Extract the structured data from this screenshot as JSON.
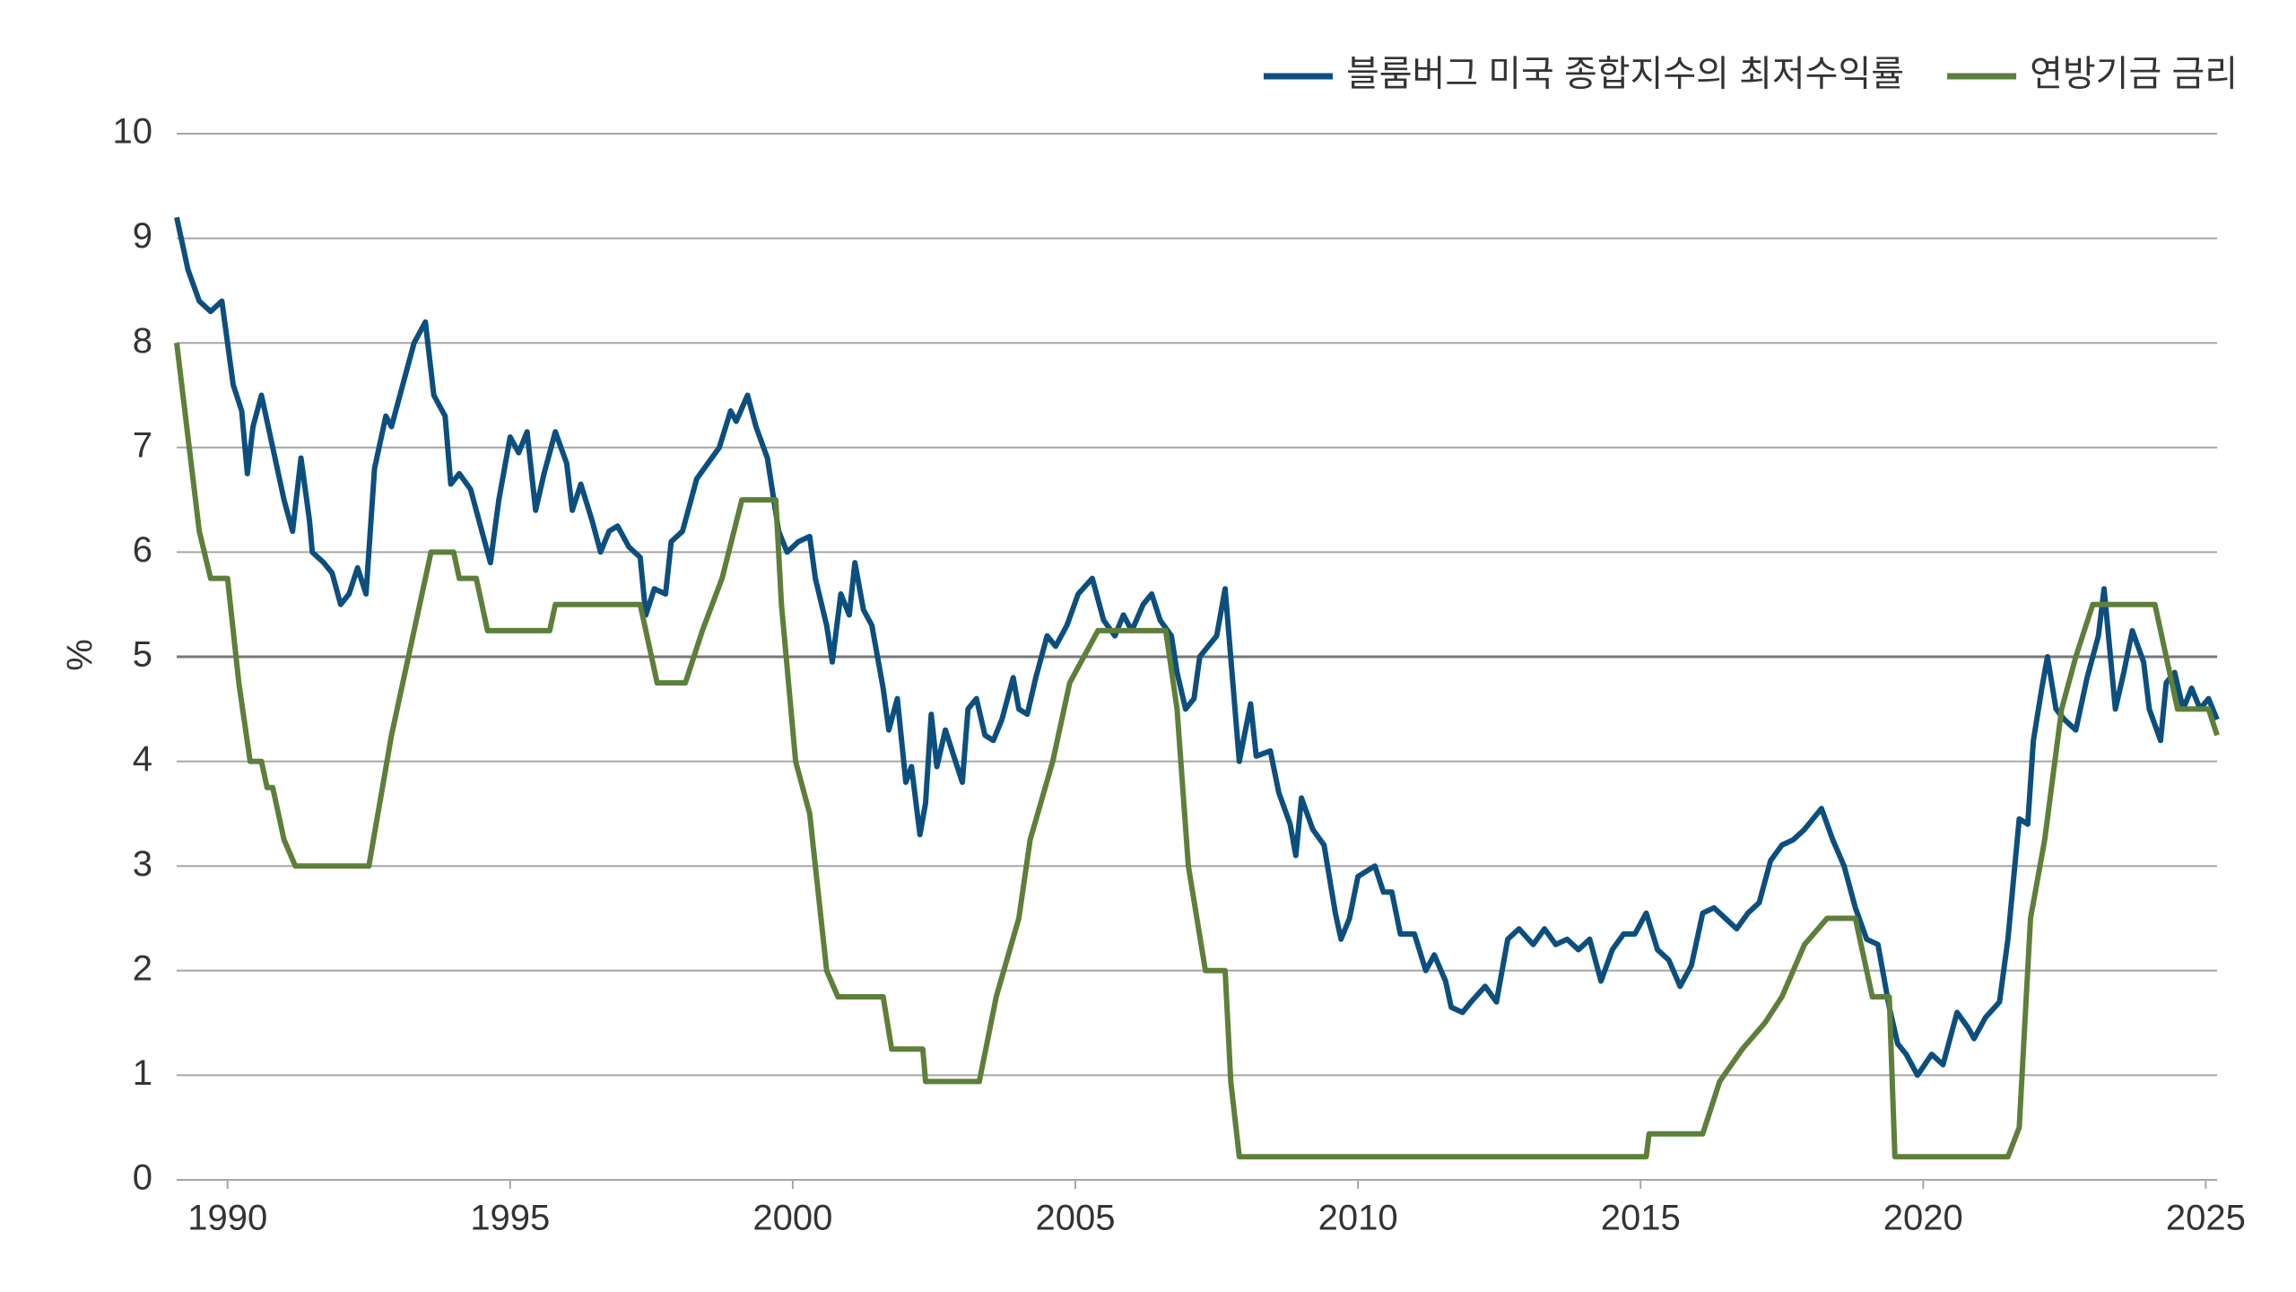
{
  "chart_data": {
    "type": "line",
    "y_label": "%",
    "legend": "top-right",
    "grid": true,
    "xlim": [
      1989.1,
      2025.2
    ],
    "xticks": [
      1990,
      1995,
      2000,
      2005,
      2010,
      2015,
      2020,
      2025
    ],
    "ylim": [
      0,
      10
    ],
    "yticks": [
      0,
      1,
      2,
      3,
      4,
      5,
      6,
      7,
      8,
      9,
      10
    ],
    "series": [
      {
        "name": "블룸버그 미국 종합지수의 최저수익률",
        "color": "#0c4f7e",
        "x": [
          1989.1,
          1989.3,
          1989.5,
          1989.7,
          1989.9,
          1990.1,
          1990.25,
          1990.35,
          1990.45,
          1990.6,
          1990.8,
          1991.0,
          1991.15,
          1991.3,
          1991.45,
          1991.5,
          1991.7,
          1991.85,
          1992.0,
          1992.15,
          1992.3,
          1992.45,
          1992.6,
          1992.8,
          1992.9,
          1993.1,
          1993.3,
          1993.5,
          1993.65,
          1993.85,
          1993.95,
          1994.1,
          1994.3,
          1994.5,
          1994.65,
          1994.8,
          1995.0,
          1995.15,
          1995.3,
          1995.45,
          1995.6,
          1995.8,
          1996.0,
          1996.1,
          1996.25,
          1996.45,
          1996.6,
          1996.75,
          1996.9,
          1997.1,
          1997.3,
          1997.4,
          1997.55,
          1997.75,
          1997.85,
          1998.05,
          1998.3,
          1998.5,
          1998.7,
          1998.9,
          1999.0,
          1999.2,
          1999.35,
          1999.55,
          1999.75,
          1999.9,
          2000.1,
          2000.3,
          2000.4,
          2000.6,
          2000.7,
          2000.85,
          2001.0,
          2001.1,
          2001.25,
          2001.4,
          2001.6,
          2001.7,
          2001.85,
          2002.0,
          2002.1,
          2002.25,
          2002.35,
          2002.45,
          2002.55,
          2002.7,
          2002.85,
          2003.0,
          2003.1,
          2003.25,
          2003.4,
          2003.55,
          2003.7,
          2003.9,
          2004.0,
          2004.15,
          2004.3,
          2004.5,
          2004.65,
          2004.85,
          2005.05,
          2005.3,
          2005.5,
          2005.7,
          2005.85,
          2006.0,
          2006.2,
          2006.35,
          2006.5,
          2006.7,
          2006.8,
          2006.95,
          2007.1,
          2007.2,
          2007.35,
          2007.5,
          2007.65,
          2007.9,
          2008.1,
          2008.2,
          2008.45,
          2008.6,
          2008.8,
          2008.9,
          2009.0,
          2009.2,
          2009.4,
          2009.6,
          2009.7,
          2009.85,
          2010.0,
          2010.3,
          2010.45,
          2010.6,
          2010.75,
          2011.0,
          2011.2,
          2011.35,
          2011.55,
          2011.65,
          2011.85,
          2012.0,
          2012.25,
          2012.45,
          2012.65,
          2012.85,
          2013.1,
          2013.3,
          2013.5,
          2013.7,
          2013.9,
          2014.1,
          2014.3,
          2014.5,
          2014.7,
          2014.9,
          2015.1,
          2015.3,
          2015.5,
          2015.7,
          2015.9,
          2016.1,
          2016.3,
          2016.5,
          2016.7,
          2016.9,
          2017.1,
          2017.3,
          2017.5,
          2017.7,
          2017.9,
          2018.2,
          2018.4,
          2018.6,
          2018.8,
          2019.0,
          2019.2,
          2019.4,
          2019.55,
          2019.7,
          2019.9,
          2020.15,
          2020.35,
          2020.6,
          2020.8,
          2020.9,
          2021.1,
          2021.35,
          2021.5,
          2021.7,
          2021.85,
          2021.95,
          2022.1,
          2022.2,
          2022.35,
          2022.5,
          2022.7,
          2022.9,
          2023.1,
          2023.2,
          2023.4,
          2023.55,
          2023.7,
          2023.9,
          2024.0,
          2024.2,
          2024.3,
          2024.45,
          2024.6,
          2024.75,
          2024.9,
          2025.05,
          2025.2
        ],
        "values": [
          9.2,
          8.7,
          8.4,
          8.3,
          8.4,
          7.6,
          7.35,
          6.75,
          7.2,
          7.5,
          7.0,
          6.5,
          6.2,
          6.9,
          6.3,
          6.0,
          5.9,
          5.8,
          5.5,
          5.6,
          5.85,
          5.6,
          6.8,
          7.3,
          7.2,
          7.6,
          8.0,
          8.2,
          7.5,
          7.3,
          6.65,
          6.75,
          6.6,
          6.2,
          5.9,
          6.5,
          7.1,
          6.95,
          7.15,
          6.4,
          6.75,
          7.15,
          6.85,
          6.4,
          6.65,
          6.3,
          6.0,
          6.2,
          6.25,
          6.05,
          5.95,
          5.4,
          5.65,
          5.6,
          6.1,
          6.2,
          6.7,
          6.85,
          7.0,
          7.35,
          7.25,
          7.5,
          7.2,
          6.9,
          6.2,
          6.0,
          6.1,
          6.15,
          5.75,
          5.3,
          4.95,
          5.6,
          5.4,
          5.9,
          5.45,
          5.3,
          4.7,
          4.3,
          4.6,
          3.8,
          3.95,
          3.3,
          3.6,
          4.45,
          3.95,
          4.3,
          4.05,
          3.8,
          4.5,
          4.6,
          4.25,
          4.2,
          4.4,
          4.8,
          4.5,
          4.45,
          4.8,
          5.2,
          5.1,
          5.3,
          5.6,
          5.75,
          5.35,
          5.2,
          5.4,
          5.25,
          5.5,
          5.6,
          5.35,
          5.2,
          4.85,
          4.5,
          4.6,
          5.0,
          5.1,
          5.2,
          5.65,
          4.0,
          4.55,
          4.05,
          4.1,
          3.7,
          3.4,
          3.1,
          3.65,
          3.35,
          3.2,
          2.55,
          2.3,
          2.5,
          2.9,
          3.0,
          2.75,
          2.75,
          2.35,
          2.35,
          2.0,
          2.15,
          1.9,
          1.65,
          1.6,
          1.7,
          1.85,
          1.7,
          2.3,
          2.4,
          2.25,
          2.4,
          2.25,
          2.3,
          2.2,
          2.3,
          1.9,
          2.2,
          2.35,
          2.35,
          2.55,
          2.2,
          2.1,
          1.85,
          2.05,
          2.55,
          2.6,
          2.5,
          2.4,
          2.55,
          2.65,
          3.05,
          3.2,
          3.25,
          3.35,
          3.55,
          3.25,
          3.0,
          2.6,
          2.3,
          2.25,
          1.65,
          1.3,
          1.2,
          1.0,
          1.2,
          1.1,
          1.6,
          1.45,
          1.35,
          1.55,
          1.7,
          2.3,
          3.45,
          3.4,
          4.2,
          4.7,
          5.0,
          4.5,
          4.4,
          4.3,
          4.8,
          5.2,
          5.65,
          4.5,
          4.85,
          5.25,
          4.95,
          4.5,
          4.2,
          4.75,
          4.85,
          4.5,
          4.7,
          4.5,
          4.6,
          4.4
        ]
      },
      {
        "name": "연방기금 금리",
        "color": "#5d7f3a",
        "x": [
          1989.1,
          1989.5,
          1989.7,
          1990.0,
          1990.2,
          1990.4,
          1990.6,
          1990.7,
          1990.8,
          1991.0,
          1991.2,
          1992.5,
          1992.9,
          1993.1,
          1993.4,
          1993.6,
          1994.0,
          1994.1,
          1994.4,
          1994.6,
          1995.7,
          1995.8,
          1997.3,
          1997.6,
          1998.1,
          1998.4,
          1998.75,
          1999.1,
          1999.7,
          1999.8,
          2000.05,
          2000.3,
          2000.6,
          2000.8,
          2001.6,
          2001.75,
          2002.3,
          2002.35,
          2003.3,
          2003.6,
          2004.0,
          2004.2,
          2004.6,
          2004.9,
          2005.4,
          2006.6,
          2006.8,
          2007.0,
          2007.3,
          2007.65,
          2007.75,
          2007.9,
          2015.1,
          2015.15,
          2016.1,
          2016.4,
          2016.8,
          2017.2,
          2017.5,
          2017.9,
          2018.3,
          2018.8,
          2019.1,
          2019.4,
          2019.5,
          2021.5,
          2021.7,
          2021.9,
          2022.15,
          2022.45,
          2022.7,
          2023.0,
          2024.1,
          2024.3,
          2024.5,
          2025.05,
          2025.2
        ],
        "values": [
          8.0,
          6.2,
          5.75,
          5.75,
          4.75,
          4.0,
          4.0,
          3.75,
          3.75,
          3.25,
          3.0,
          3.0,
          4.25,
          4.75,
          5.5,
          6.0,
          6.0,
          5.75,
          5.75,
          5.25,
          5.25,
          5.5,
          5.5,
          4.75,
          4.75,
          5.25,
          5.75,
          6.5,
          6.5,
          5.5,
          4.0,
          3.5,
          2.0,
          1.75,
          1.75,
          1.25,
          1.25,
          0.94,
          0.94,
          1.75,
          2.5,
          3.25,
          4.0,
          4.75,
          5.25,
          5.25,
          4.5,
          3.0,
          2.0,
          2.0,
          0.94,
          0.22,
          0.22,
          0.44,
          0.44,
          0.94,
          1.25,
          1.5,
          1.75,
          2.25,
          2.5,
          2.5,
          1.75,
          1.75,
          0.22,
          0.22,
          0.5,
          2.5,
          3.25,
          4.5,
          5.0,
          5.5,
          5.5,
          5.0,
          4.5,
          4.5,
          4.25
        ]
      }
    ]
  }
}
